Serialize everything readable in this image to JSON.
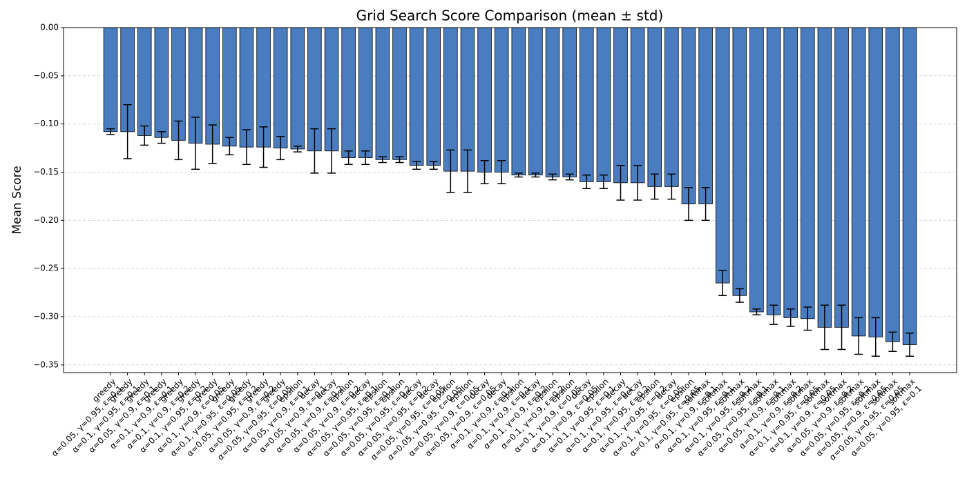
{
  "chart_data": {
    "type": "bar",
    "title": "Grid Search Score Comparison (mean ± std)",
    "ylabel": "Mean Score",
    "color": "#4a7dbf",
    "categories": [
      "greedy\nα=0.05, γ=0.95, ε=0.1",
      "greedy\nα=0.1, γ=0.95, ε=0.1",
      "greedy\nα=0.05, γ=0.9, ε=0.1",
      "greedy\nα=0.1, γ=0.9, ε=0.1",
      "greedy\nα=0.1, γ=0.9, ε=0.2",
      "greedy\nα=0.1, γ=0.95, ε=0.2",
      "greedy\nα=0.1, γ=0.9, ε=0.05",
      "greedy\nα=0.1, γ=0.95, ε=0.05",
      "greedy\nα=0.05, γ=0.95, ε=0.2",
      "greedy\nα=0.05, γ=0.9, ε=0.2",
      "greedy\nα=0.05, γ=0.95, ε=0.05",
      "epsilon\nα=0.05, γ=0.9, ε=0.1",
      "decay\nα=0.05, γ=0.9, ε=0.1",
      "decay\nα=0.05, γ=0.9, ε=0.2",
      "epsilon\nα=0.05, γ=0.9, ε=0.2",
      "decay\nα=0.05, γ=0.95, ε=0.1",
      "epsilon\nα=0.05, γ=0.95, ε=0.1",
      "epsilon\nα=0.05, γ=0.95, ε=0.2",
      "decay\nα=0.05, γ=0.95, ε=0.2",
      "decay\nα=0.05, γ=0.95, ε=0.05",
      "epsilon\nα=0.05, γ=0.95, ε=0.05",
      "epsilon\nα=0.05, γ=0.9, ε=0.05",
      "decay\nα=0.05, γ=0.9, ε=0.05",
      "decay\nα=0.1, γ=0.9, ε=0.1",
      "epsilon\nα=0.1, γ=0.9, ε=0.1",
      "decay\nα=0.1, γ=0.9, ε=0.2",
      "epsilon\nα=0.1, γ=0.9, ε=0.2",
      "epsilon\nα=0.1, γ=0.9, ε=0.05",
      "decay\nα=0.1, γ=0.9, ε=0.05",
      "epsilon\nα=0.1, γ=0.95, ε=0.1",
      "decay\nα=0.1, γ=0.95, ε=0.1",
      "decay\nα=0.1, γ=0.95, ε=0.2",
      "epsilon\nα=0.1, γ=0.95, ε=0.2",
      "decay\nα=0.1, γ=0.95, ε=0.05",
      "epsilon\nα=0.1, γ=0.95, ε=0.05",
      "softmax\nα=0.1, γ=0.9, ε=0.1",
      "softmax\nα=0.1, γ=0.95, ε=0.1",
      "softmax\nα=0.1, γ=0.95, ε=0.2",
      "softmax\nα=0.05, γ=0.95, ε=0.1",
      "softmax\nα=0.05, γ=0.9, ε=0.1",
      "softmax\nα=0.1, γ=0.9, ε=0.2",
      "softmax\nα=0.1, γ=0.95, ε=0.05",
      "softmax\nα=0.1, γ=0.9, ε=0.05",
      "softmax\nα=0.05, γ=0.9, ε=0.2",
      "softmax\nα=0.05, γ=0.95, ε=0.2",
      "softmax\nα=0.05, γ=0.9, ε=0.05",
      "softmax\nα=0.05, γ=0.95, ε=0.05",
      "softmax\nα=0.05, γ=0.95, ε=0.1"
    ],
    "values": [
      -0.108,
      -0.108,
      -0.112,
      -0.114,
      -0.117,
      -0.12,
      -0.121,
      -0.123,
      -0.124,
      -0.124,
      -0.125,
      -0.126,
      -0.128,
      -0.128,
      -0.135,
      -0.135,
      -0.137,
      -0.137,
      -0.143,
      -0.143,
      -0.149,
      -0.149,
      -0.15,
      -0.15,
      -0.153,
      -0.153,
      -0.155,
      -0.155,
      -0.16,
      -0.16,
      -0.161,
      -0.161,
      -0.165,
      -0.165,
      -0.183,
      -0.183,
      -0.265,
      -0.278,
      -0.295,
      -0.298,
      -0.301,
      -0.302,
      -0.311,
      -0.311,
      -0.32,
      -0.321,
      -0.326,
      -0.329
    ],
    "errors": [
      0.003,
      0.028,
      0.01,
      0.006,
      0.02,
      0.027,
      0.02,
      0.009,
      0.018,
      0.021,
      0.012,
      0.003,
      0.023,
      0.023,
      0.007,
      0.007,
      0.003,
      0.003,
      0.004,
      0.004,
      0.022,
      0.022,
      0.012,
      0.012,
      0.002,
      0.002,
      0.003,
      0.003,
      0.007,
      0.007,
      0.018,
      0.018,
      0.013,
      0.013,
      0.017,
      0.017,
      0.013,
      0.007,
      0.003,
      0.01,
      0.009,
      0.012,
      0.023,
      0.023,
      0.019,
      0.02,
      0.01,
      0.012
    ],
    "ylim": [
      -0.358,
      0
    ],
    "yticks": [
      {
        "value": 0,
        "label": "0.00"
      },
      {
        "value": -0.05,
        "label": "−0.05"
      },
      {
        "value": -0.1,
        "label": "−0.10"
      },
      {
        "value": -0.15,
        "label": "−0.15"
      },
      {
        "value": -0.2,
        "label": "−0.20"
      },
      {
        "value": -0.25,
        "label": "−0.25"
      },
      {
        "value": -0.3,
        "label": "−0.30"
      },
      {
        "value": -0.35,
        "label": "−0.35"
      }
    ],
    "grid": true
  }
}
